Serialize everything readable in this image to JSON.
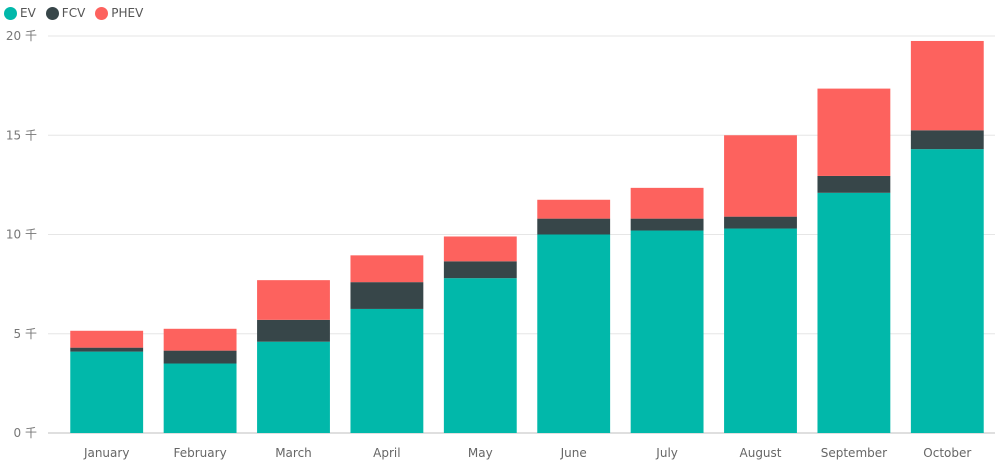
{
  "chart_data": {
    "type": "bar",
    "stacked": true,
    "categories": [
      "January",
      "February",
      "March",
      "April",
      "May",
      "June",
      "July",
      "August",
      "September",
      "October"
    ],
    "series": [
      {
        "name": "EV",
        "color": "#01B8AA",
        "values": [
          4.1,
          3.5,
          4.6,
          6.25,
          7.8,
          10.0,
          10.2,
          10.3,
          12.1,
          14.3
        ]
      },
      {
        "name": "FCV",
        "color": "#374649",
        "values": [
          0.2,
          0.65,
          1.1,
          1.35,
          0.85,
          0.8,
          0.6,
          0.6,
          0.85,
          0.95
        ]
      },
      {
        "name": "PHEV",
        "color": "#FD625E",
        "values": [
          0.85,
          1.1,
          2.0,
          1.35,
          1.25,
          0.95,
          1.55,
          4.1,
          4.4,
          4.5
        ]
      }
    ],
    "ylim": [
      0,
      20
    ],
    "yticks": [
      0,
      5,
      10,
      15,
      20
    ],
    "ytick_labels": [
      "0 千",
      "5 千",
      "10 千",
      "15 千",
      "20 千"
    ],
    "grid": true,
    "legend_position": "top-left"
  }
}
